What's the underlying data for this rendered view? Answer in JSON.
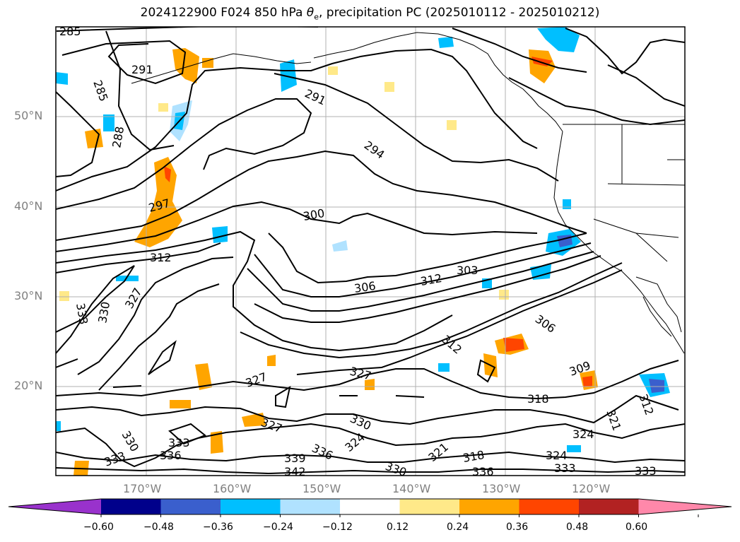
{
  "title": {
    "prefix": "2024122900 F024 850 hPa ",
    "theta": "θ",
    "sub": "e",
    "suffix": ", precipitation PC (2025010112 - 2025010212)"
  },
  "lat_labels": [
    "50°N",
    "40°N",
    "30°N",
    "20°N"
  ],
  "lon_labels": [
    "170°W",
    "160°W",
    "150°W",
    "140°W",
    "130°W",
    "120°W"
  ],
  "contour_labels": [
    "285",
    "291",
    "285",
    "288",
    "291",
    "294",
    "297",
    "300",
    "312",
    "327",
    "330",
    "333",
    "303",
    "312",
    "306",
    "306",
    "312",
    "327",
    "327",
    "309",
    "318",
    "312",
    "321",
    "324",
    "324",
    "333",
    "330",
    "336",
    "339",
    "342",
    "333",
    "336",
    "330",
    "324",
    "321",
    "318",
    "333",
    "330",
    "327",
    "336",
    "333"
  ],
  "colorbar": {
    "ticks": [
      "−0.60",
      "−0.48",
      "−0.36",
      "−0.24",
      "−0.12",
      "0.12",
      "0.24",
      "0.36",
      "0.48",
      "0.60"
    ],
    "colors": [
      "#9932cc",
      "#00008b",
      "#3a5fcd",
      "#00bfff",
      "#b0e2ff",
      "#ffffff",
      "#ffe989",
      "#ffa500",
      "#ff4500",
      "#b22222",
      "#ff88aa"
    ]
  }
}
